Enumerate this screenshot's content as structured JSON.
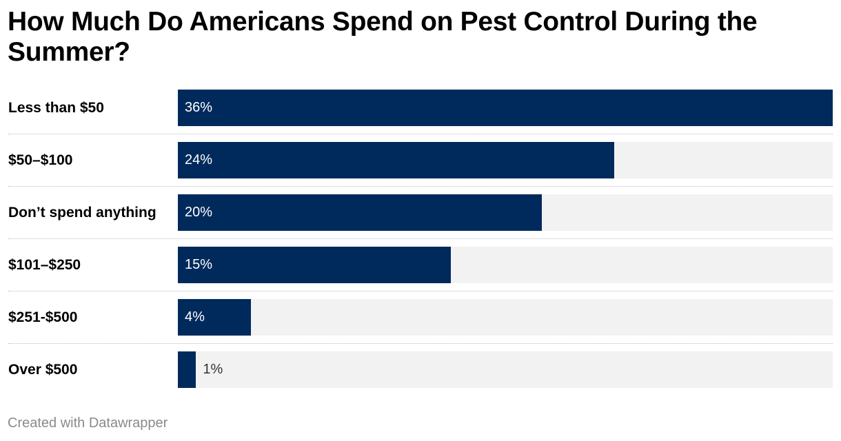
{
  "chart_data": {
    "type": "bar",
    "orientation": "horizontal",
    "title": "How Much Do Americans Spend on Pest Control During the Summer?",
    "categories": [
      "Less than $50",
      "$50–$100",
      "Don’t spend anything",
      "$101–$250",
      "$251-$500",
      "Over $500"
    ],
    "values": [
      36,
      24,
      20,
      15,
      4,
      1
    ],
    "value_labels": [
      "36%",
      "24%",
      "20%",
      "15%",
      "4%",
      "1%"
    ],
    "unit": "%",
    "xlim": [
      0,
      36
    ],
    "grid": false,
    "colors": {
      "bar": "#002a5c",
      "track": "#f2f2f2"
    }
  },
  "footer": "Created with Datawrapper"
}
